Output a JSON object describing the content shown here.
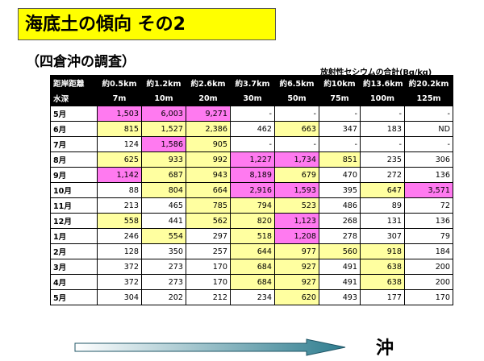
{
  "title": "海底土の傾向 その2",
  "subtitle": "（四倉沖の調査）",
  "unit_note": "放射性セシウムの合計(Bq/kg)",
  "colors": {
    "title_bg": "#ffff00",
    "header_bg": "#000000",
    "cell_yellow": "#ffffa0",
    "cell_pink": "#ff7af0",
    "arrow_fill": "#2e7d8f"
  },
  "header": {
    "distance_label": "距岸距離",
    "depth_label": "水深",
    "distances": [
      "約0.5km",
      "約1.2km",
      "約2.6km",
      "約3.7km",
      "約6.5km",
      "約10km",
      "約13.6km",
      "約20.2km"
    ],
    "depths": [
      "7m",
      "10m",
      "20m",
      "30m",
      "50m",
      "75m",
      "100m",
      "125m"
    ]
  },
  "rows": [
    {
      "month": "5月",
      "values": [
        "1,503",
        "6,003",
        "9,271",
        "-",
        "-",
        "-",
        "-",
        "-"
      ],
      "colors": [
        "p",
        "p",
        "p",
        "w",
        "w",
        "w",
        "w",
        "w"
      ]
    },
    {
      "month": "6月",
      "values": [
        "815",
        "1,527",
        "2,386",
        "462",
        "663",
        "347",
        "183",
        "ND"
      ],
      "colors": [
        "y",
        "y",
        "y",
        "w",
        "y",
        "w",
        "w",
        "w"
      ]
    },
    {
      "month": "7月",
      "values": [
        "124",
        "1,586",
        "905",
        "-",
        "-",
        "-",
        "-",
        "-"
      ],
      "colors": [
        "w",
        "p",
        "y",
        "w",
        "w",
        "w",
        "w",
        "w"
      ]
    },
    {
      "month": "8月",
      "values": [
        "625",
        "933",
        "992",
        "1,227",
        "1,734",
        "851",
        "235",
        "306"
      ],
      "colors": [
        "y",
        "y",
        "y",
        "p",
        "p",
        "y",
        "w",
        "w"
      ]
    },
    {
      "month": "9月",
      "values": [
        "1,142",
        "687",
        "943",
        "8,189",
        "679",
        "470",
        "272",
        "136"
      ],
      "colors": [
        "p",
        "y",
        "y",
        "p",
        "y",
        "w",
        "w",
        "w"
      ]
    },
    {
      "month": "10月",
      "values": [
        "88",
        "804",
        "664",
        "2,916",
        "1,593",
        "395",
        "647",
        "3,571"
      ],
      "colors": [
        "w",
        "y",
        "y",
        "p",
        "p",
        "w",
        "y",
        "p"
      ]
    },
    {
      "month": "11月",
      "values": [
        "213",
        "465",
        "785",
        "794",
        "523",
        "486",
        "89",
        "72"
      ],
      "colors": [
        "w",
        "w",
        "y",
        "y",
        "y",
        "w",
        "w",
        "w"
      ]
    },
    {
      "month": "12月",
      "values": [
        "558",
        "441",
        "562",
        "820",
        "1,123",
        "268",
        "131",
        "136"
      ],
      "colors": [
        "y",
        "w",
        "y",
        "y",
        "p",
        "w",
        "w",
        "w"
      ]
    },
    {
      "month": "1月",
      "values": [
        "246",
        "554",
        "297",
        "518",
        "1,208",
        "278",
        "307",
        "79"
      ],
      "colors": [
        "w",
        "y",
        "w",
        "y",
        "p",
        "w",
        "w",
        "w"
      ]
    },
    {
      "month": "2月",
      "values": [
        "128",
        "350",
        "257",
        "644",
        "977",
        "560",
        "918",
        "184"
      ],
      "colors": [
        "w",
        "w",
        "w",
        "y",
        "y",
        "y",
        "y",
        "w"
      ]
    },
    {
      "month": "3月",
      "values": [
        "372",
        "273",
        "170",
        "684",
        "927",
        "491",
        "638",
        "200"
      ],
      "colors": [
        "w",
        "w",
        "w",
        "y",
        "y",
        "w",
        "y",
        "w"
      ]
    },
    {
      "month": "4月",
      "values": [
        "372",
        "273",
        "170",
        "684",
        "927",
        "491",
        "638",
        "200"
      ],
      "colors": [
        "w",
        "w",
        "w",
        "y",
        "y",
        "w",
        "y",
        "w"
      ]
    },
    {
      "month": "5月",
      "values": [
        "304",
        "202",
        "212",
        "234",
        "620",
        "493",
        "177",
        "170"
      ],
      "colors": [
        "w",
        "w",
        "w",
        "w",
        "y",
        "w",
        "w",
        "w"
      ]
    }
  ],
  "offshore_label": "沖"
}
